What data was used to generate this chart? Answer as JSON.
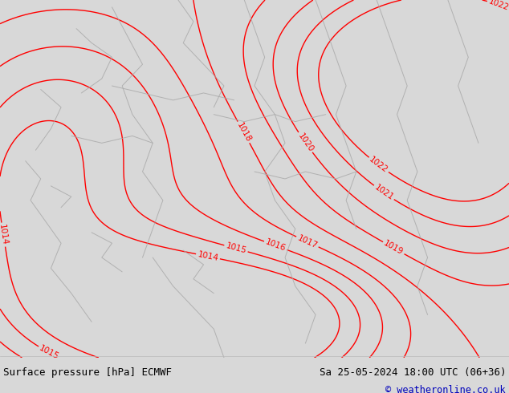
{
  "title_left": "Surface pressure [hPa] ECMWF",
  "title_right": "Sa 25-05-2024 18:00 UTC (06+36)",
  "copyright": "© weatheronline.co.uk",
  "map_bg": "#c8ef96",
  "contour_color": "#ff0000",
  "border_color": "#aaaaaa",
  "footer_bg": "#d8d8d8",
  "footer_text_color": "#000000",
  "copyright_color": "#0000bb",
  "pressure_levels": [
    1014,
    1015,
    1016,
    1017,
    1018,
    1019,
    1020,
    1021,
    1022
  ],
  "fig_width": 6.34,
  "fig_height": 4.9,
  "dpi": 100
}
